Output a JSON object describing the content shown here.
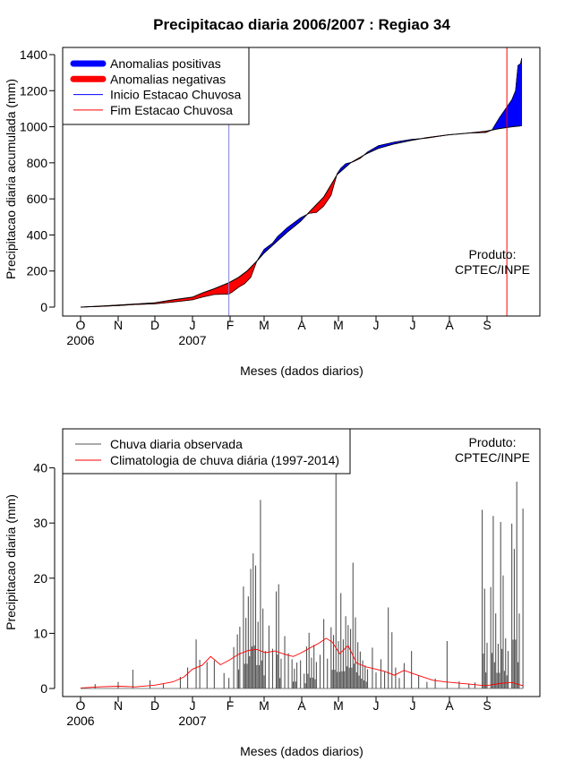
{
  "chart_data": [
    {
      "type": "area",
      "title": "Precipitacao diaria 2006/2007 : Regiao 34",
      "xlabel": "Meses (dados diarios)",
      "ylabel": "Precipitacao diaria acumulada (mm)",
      "ylim": [
        0,
        1450
      ],
      "yticks": [
        0,
        200,
        400,
        600,
        800,
        1000,
        1200,
        1400
      ],
      "month_ticks": [
        "O",
        "N",
        "D",
        "J",
        "F",
        "M",
        "A",
        "M",
        "J",
        "J",
        "A",
        "S"
      ],
      "year_labels": [
        {
          "label": "2006",
          "day": 0
        },
        {
          "label": "2007",
          "day": 92
        }
      ],
      "day_range": [
        0,
        365
      ],
      "legend": [
        {
          "label": "Anomalias positivas",
          "color": "#0000ff",
          "style": "thick"
        },
        {
          "label": "Anomalias negativas",
          "color": "#ff0000",
          "style": "thick"
        },
        {
          "label": "Inicio Estacao Chuvosa",
          "color": "#0000ff",
          "style": "thin"
        },
        {
          "label": "Fim Estacao Chuvosa",
          "color": "#ff0000",
          "style": "thin"
        }
      ],
      "annotation": [
        "Produto:",
        "CPTEC/INPE"
      ],
      "rainy_season_start_day": 122,
      "rainy_season_end_day": 351,
      "climatology_cumulative": [
        [
          0,
          0
        ],
        [
          15,
          5
        ],
        [
          31,
          11
        ],
        [
          45,
          17
        ],
        [
          61,
          24
        ],
        [
          76,
          40
        ],
        [
          92,
          55
        ],
        [
          100,
          78
        ],
        [
          110,
          102
        ],
        [
          122,
          135
        ],
        [
          130,
          165
        ],
        [
          137,
          200
        ],
        [
          145,
          255
        ],
        [
          151,
          300
        ],
        [
          160,
          355
        ],
        [
          170,
          415
        ],
        [
          181,
          475
        ],
        [
          190,
          540
        ],
        [
          200,
          610
        ],
        [
          211,
          735
        ],
        [
          222,
          800
        ],
        [
          235,
          850
        ],
        [
          245,
          880
        ],
        [
          258,
          905
        ],
        [
          272,
          925
        ],
        [
          285,
          940
        ],
        [
          303,
          955
        ],
        [
          320,
          965
        ],
        [
          334,
          975
        ],
        [
          345,
          990
        ],
        [
          355,
          1000
        ],
        [
          362,
          1005
        ]
      ],
      "observed_cumulative": [
        [
          0,
          0
        ],
        [
          15,
          3
        ],
        [
          31,
          8
        ],
        [
          45,
          14
        ],
        [
          61,
          18
        ],
        [
          76,
          28
        ],
        [
          92,
          40
        ],
        [
          100,
          55
        ],
        [
          110,
          70
        ],
        [
          122,
          72
        ],
        [
          125,
          85
        ],
        [
          130,
          110
        ],
        [
          135,
          130
        ],
        [
          140,
          165
        ],
        [
          145,
          255
        ],
        [
          151,
          320
        ],
        [
          158,
          355
        ],
        [
          162,
          390
        ],
        [
          170,
          440
        ],
        [
          181,
          495
        ],
        [
          188,
          520
        ],
        [
          194,
          525
        ],
        [
          200,
          560
        ],
        [
          206,
          620
        ],
        [
          211,
          740
        ],
        [
          214,
          770
        ],
        [
          218,
          795
        ],
        [
          224,
          805
        ],
        [
          230,
          825
        ],
        [
          236,
          860
        ],
        [
          245,
          895
        ],
        [
          258,
          915
        ],
        [
          272,
          930
        ],
        [
          285,
          937
        ],
        [
          303,
          955
        ],
        [
          320,
          965
        ],
        [
          334,
          968
        ],
        [
          339,
          982
        ],
        [
          345,
          1050
        ],
        [
          350,
          1100
        ],
        [
          355,
          1150
        ],
        [
          358,
          1200
        ],
        [
          360,
          1340
        ],
        [
          362,
          1350
        ],
        [
          363,
          1380
        ]
      ]
    },
    {
      "type": "bar",
      "title": "",
      "xlabel": "Meses (dados diarios)",
      "ylabel": "Precipitacao diaria (mm)",
      "ylim": [
        0,
        47
      ],
      "yticks": [
        0,
        10,
        20,
        30,
        40
      ],
      "month_ticks": [
        "O",
        "N",
        "D",
        "J",
        "F",
        "M",
        "A",
        "M",
        "J",
        "J",
        "A",
        "S"
      ],
      "year_labels": [
        {
          "label": "2006",
          "day": 0
        },
        {
          "label": "2007",
          "day": 92
        }
      ],
      "day_range": [
        0,
        365
      ],
      "legend": [
        {
          "label": "Chuva diaria observada",
          "color": "#000000",
          "style": "line"
        },
        {
          "label": "Climatologia de chuva diária (1997-2014)",
          "color": "#ff0000",
          "style": "line"
        }
      ],
      "annotation": [
        "Produto:",
        "CPTEC/INPE"
      ],
      "observed_daily_peaks": [
        [
          12,
          0.8
        ],
        [
          31,
          1.2
        ],
        [
          43,
          3.4
        ],
        [
          57,
          1.5
        ],
        [
          68,
          0.9
        ],
        [
          82,
          2.1
        ],
        [
          88,
          3.8
        ],
        [
          95,
          8.9
        ],
        [
          98,
          5.2
        ],
        [
          104,
          4.8
        ],
        [
          110,
          5.1
        ],
        [
          118,
          2.8
        ],
        [
          122,
          1.9
        ],
        [
          126,
          7.5
        ],
        [
          129,
          9.8
        ],
        [
          131,
          11.2
        ],
        [
          134,
          18.5
        ],
        [
          136,
          12.8
        ],
        [
          138,
          16.7
        ],
        [
          140,
          21.7
        ],
        [
          142,
          24.5
        ],
        [
          144,
          22.3
        ],
        [
          146,
          12.1
        ],
        [
          148,
          34.2
        ],
        [
          150,
          14.5
        ],
        [
          152,
          6.8
        ],
        [
          155,
          11.4
        ],
        [
          158,
          7.2
        ],
        [
          161,
          17.6
        ],
        [
          163,
          18.9
        ],
        [
          165,
          5.4
        ],
        [
          168,
          9.5
        ],
        [
          171,
          6.4
        ],
        [
          174,
          5.3
        ],
        [
          176,
          3.6
        ],
        [
          178,
          4.7
        ],
        [
          181,
          5.1
        ],
        [
          184,
          2.7
        ],
        [
          186,
          7.6
        ],
        [
          188,
          10.1
        ],
        [
          190,
          5.6
        ],
        [
          192,
          7.9
        ],
        [
          194,
          4.8
        ],
        [
          197,
          6.1
        ],
        [
          200,
          12.6
        ],
        [
          203,
          5.4
        ],
        [
          206,
          11.1
        ],
        [
          208,
          9.7
        ],
        [
          210,
          40.5
        ],
        [
          212,
          8.6
        ],
        [
          214,
          17.3
        ],
        [
          216,
          8.9
        ],
        [
          218,
          13.1
        ],
        [
          220,
          11.5
        ],
        [
          222,
          10.8
        ],
        [
          224,
          22.8
        ],
        [
          226,
          12.9
        ],
        [
          228,
          8.4
        ],
        [
          230,
          6.7
        ],
        [
          232,
          5.1
        ],
        [
          234,
          4.2
        ],
        [
          236,
          3.5
        ],
        [
          240,
          7.4
        ],
        [
          243,
          2.9
        ],
        [
          247,
          5.3
        ],
        [
          250,
          3.1
        ],
        [
          253,
          14.7
        ],
        [
          256,
          10.2
        ],
        [
          259,
          3.8
        ],
        [
          262,
          1.9
        ],
        [
          266,
          4.6
        ],
        [
          272,
          6.8
        ],
        [
          278,
          2.4
        ],
        [
          285,
          1.2
        ],
        [
          292,
          1.8
        ],
        [
          302,
          8.6
        ],
        [
          312,
          1.3
        ],
        [
          320,
          0.9
        ],
        [
          325,
          1.1
        ],
        [
          331,
          32.4
        ],
        [
          333,
          18.1
        ],
        [
          335,
          8.3
        ],
        [
          338,
          18.4
        ],
        [
          340,
          31.3
        ],
        [
          342,
          13.6
        ],
        [
          344,
          8.1
        ],
        [
          346,
          30.2
        ],
        [
          348,
          20.5
        ],
        [
          350,
          9.1
        ],
        [
          352,
          6.8
        ],
        [
          355,
          29.9
        ],
        [
          357,
          25.3
        ],
        [
          359,
          37.5
        ],
        [
          361,
          13.6
        ],
        [
          364,
          32.6
        ]
      ],
      "climatology_daily": [
        [
          0,
          0.1
        ],
        [
          15,
          0.3
        ],
        [
          31,
          0.4
        ],
        [
          45,
          0.3
        ],
        [
          61,
          0.6
        ],
        [
          76,
          1.2
        ],
        [
          85,
          2.1
        ],
        [
          92,
          3.5
        ],
        [
          100,
          4.2
        ],
        [
          107,
          5.8
        ],
        [
          115,
          4.3
        ],
        [
          122,
          5.1
        ],
        [
          130,
          6.2
        ],
        [
          138,
          6.9
        ],
        [
          145,
          7.1
        ],
        [
          152,
          6.5
        ],
        [
          160,
          6.8
        ],
        [
          168,
          6.2
        ],
        [
          175,
          5.8
        ],
        [
          181,
          6.4
        ],
        [
          190,
          7.5
        ],
        [
          196,
          8.2
        ],
        [
          202,
          9.1
        ],
        [
          207,
          8.4
        ],
        [
          213,
          6.3
        ],
        [
          220,
          7.8
        ],
        [
          227,
          4.6
        ],
        [
          235,
          3.9
        ],
        [
          243,
          3.5
        ],
        [
          250,
          3.1
        ],
        [
          258,
          2.4
        ],
        [
          266,
          3.3
        ],
        [
          272,
          2.8
        ],
        [
          280,
          2.2
        ],
        [
          290,
          1.5
        ],
        [
          300,
          1.2
        ],
        [
          310,
          1.0
        ],
        [
          320,
          0.8
        ],
        [
          334,
          0.5
        ],
        [
          345,
          0.9
        ],
        [
          355,
          1.1
        ],
        [
          364,
          0.5
        ]
      ]
    }
  ]
}
